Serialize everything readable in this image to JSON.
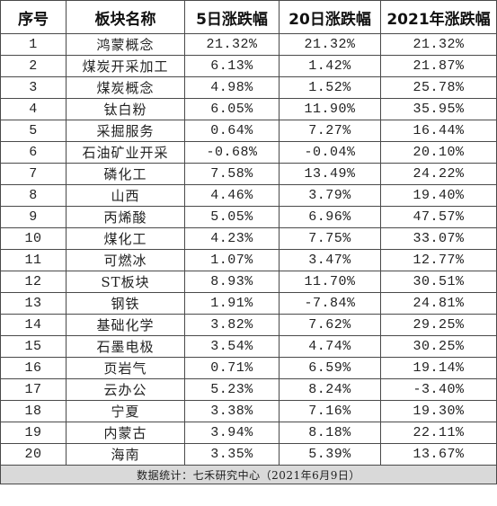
{
  "headers": [
    "序号",
    "板块名称",
    "5日涨跌幅",
    "20日涨跌幅",
    "2021年涨跌幅"
  ],
  "rows": [
    {
      "index": "1",
      "name": "鸿蒙概念",
      "d5": "21.32%",
      "d20": "21.32%",
      "y2021": "21.32%"
    },
    {
      "index": "2",
      "name": "煤炭开采加工",
      "d5": "6.13%",
      "d20": "1.42%",
      "y2021": "21.87%"
    },
    {
      "index": "3",
      "name": "煤炭概念",
      "d5": "4.98%",
      "d20": "1.52%",
      "y2021": "25.78%"
    },
    {
      "index": "4",
      "name": "钛白粉",
      "d5": "6.05%",
      "d20": "11.90%",
      "y2021": "35.95%"
    },
    {
      "index": "5",
      "name": "采掘服务",
      "d5": "0.64%",
      "d20": "7.27%",
      "y2021": "16.44%"
    },
    {
      "index": "6",
      "name": "石油矿业开采",
      "d5": "-0.68%",
      "d20": "-0.04%",
      "y2021": "20.10%"
    },
    {
      "index": "7",
      "name": "磷化工",
      "d5": "7.58%",
      "d20": "13.49%",
      "y2021": "24.22%"
    },
    {
      "index": "8",
      "name": "山西",
      "d5": "4.46%",
      "d20": "3.79%",
      "y2021": "19.40%"
    },
    {
      "index": "9",
      "name": "丙烯酸",
      "d5": "5.05%",
      "d20": "6.96%",
      "y2021": "47.57%"
    },
    {
      "index": "10",
      "name": "煤化工",
      "d5": "4.23%",
      "d20": "7.75%",
      "y2021": "33.07%"
    },
    {
      "index": "11",
      "name": "可燃冰",
      "d5": "1.07%",
      "d20": "3.47%",
      "y2021": "12.77%"
    },
    {
      "index": "12",
      "name": "ST板块",
      "d5": "8.93%",
      "d20": "11.70%",
      "y2021": "30.51%"
    },
    {
      "index": "13",
      "name": "钢铁",
      "d5": "1.91%",
      "d20": "-7.84%",
      "y2021": "24.81%"
    },
    {
      "index": "14",
      "name": "基础化学",
      "d5": "3.82%",
      "d20": "7.62%",
      "y2021": "29.25%"
    },
    {
      "index": "15",
      "name": "石墨电极",
      "d5": "3.54%",
      "d20": "4.74%",
      "y2021": "30.25%"
    },
    {
      "index": "16",
      "name": "页岩气",
      "d5": "0.71%",
      "d20": "6.59%",
      "y2021": "19.14%"
    },
    {
      "index": "17",
      "name": "云办公",
      "d5": "5.23%",
      "d20": "8.24%",
      "y2021": "-3.40%"
    },
    {
      "index": "18",
      "name": "宁夏",
      "d5": "3.38%",
      "d20": "7.16%",
      "y2021": "19.30%"
    },
    {
      "index": "19",
      "name": "内蒙古",
      "d5": "3.94%",
      "d20": "8.18%",
      "y2021": "22.11%"
    },
    {
      "index": "20",
      "name": "海南",
      "d5": "3.35%",
      "d20": "5.39%",
      "y2021": "13.67%"
    }
  ],
  "footer": "数据统计：七禾研究中心（2021年6月9日）"
}
